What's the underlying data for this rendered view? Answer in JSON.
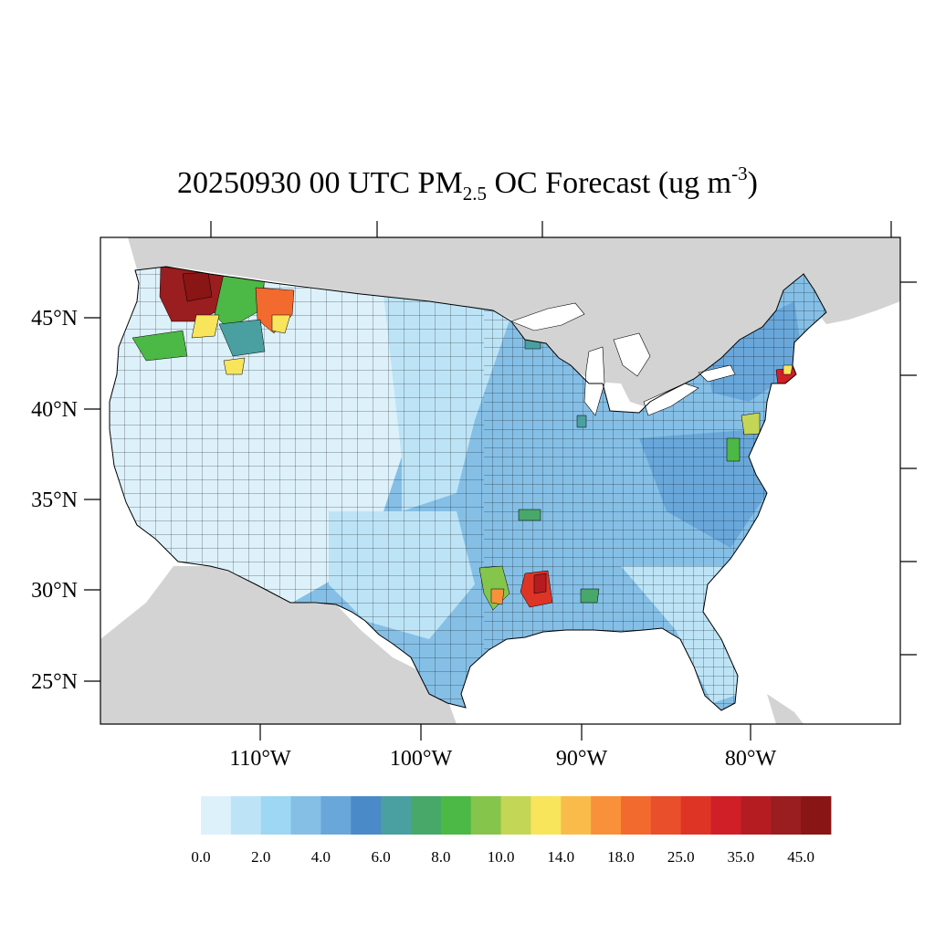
{
  "title": {
    "prefix": "20250930 00 UTC PM",
    "subscript": "2.5",
    "middle": " OC Forecast (ug m",
    "superscript": "-3",
    "suffix": ")"
  },
  "map": {
    "projection": "lambert-conformal",
    "latitude_labels": [
      "45°N",
      "40°N",
      "35°N",
      "30°N",
      "25°N"
    ],
    "longitude_labels": [
      "110°W",
      "100°W",
      "90°W",
      "80°W"
    ],
    "colors": {
      "land_outside": "#d3d3d3",
      "water": "#ffffff",
      "county_border": "#000000"
    },
    "hotspots": [
      {
        "region": "northern Idaho / Washington / Montana",
        "range": "25.0-45.0+"
      },
      {
        "region": "western Montana",
        "range": "14.0-25.0"
      },
      {
        "region": "Oregon",
        "range": "8.0-14.0"
      },
      {
        "region": "Louisiana",
        "range": "14.0-35.0"
      },
      {
        "region": "eastern Texas",
        "range": "8.0-18.0"
      },
      {
        "region": "New England coast",
        "range": "14.0-35.0"
      },
      {
        "region": "New Jersey",
        "range": "8.0-14.0"
      }
    ]
  },
  "colorbar": {
    "colors": [
      "#ddf1fb",
      "#bde4f6",
      "#9dd7f3",
      "#85bfe6",
      "#69a7da",
      "#4a8ac8",
      "#4a9fa0",
      "#47a86a",
      "#4cb845",
      "#86c54c",
      "#c4d655",
      "#f8e55b",
      "#f9bc4a",
      "#f8913a",
      "#f26a2d",
      "#e84f2a",
      "#de3426",
      "#d01f27",
      "#b51c22",
      "#9a1d1f",
      "#8a1515"
    ],
    "labels": [
      "0.0",
      "2.0",
      "4.0",
      "6.0",
      "8.0",
      "10.0",
      "14.0",
      "18.0",
      "25.0",
      "35.0",
      "45.0"
    ]
  }
}
